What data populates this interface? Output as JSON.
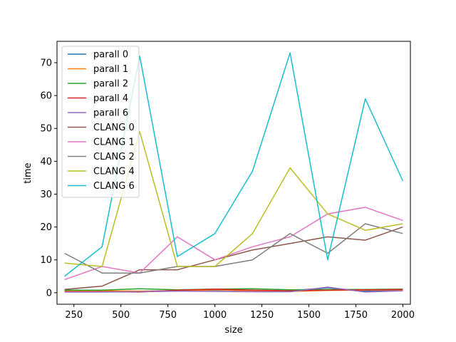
{
  "chart_data": {
    "type": "line",
    "title": "",
    "xlabel": "size",
    "ylabel": "time",
    "xlim": [
      160,
      2040
    ],
    "ylim": [
      -3.5,
      76.5
    ],
    "x": [
      200,
      400,
      600,
      800,
      1000,
      1200,
      1400,
      1600,
      1800,
      2000
    ],
    "xticks": [
      250,
      500,
      750,
      1000,
      1250,
      1500,
      1750,
      2000
    ],
    "xtick_labels": [
      "250",
      "500",
      "750",
      "1000",
      "1250",
      "1500",
      "1750",
      "2000"
    ],
    "yticks": [
      0,
      10,
      20,
      30,
      40,
      50,
      60,
      70
    ],
    "ytick_labels": [
      "0",
      "10",
      "20",
      "30",
      "40",
      "50",
      "60",
      "70"
    ],
    "grid": false,
    "legend_position": "top-left",
    "series": [
      {
        "name": "parall 0",
        "color": "#1f77b4",
        "values": [
          0.5,
          0.5,
          0.5,
          0.6,
          0.8,
          0.7,
          0.6,
          1.5,
          0.5,
          0.9
        ]
      },
      {
        "name": "parall 1",
        "color": "#ff7f0e",
        "values": [
          0.5,
          0.6,
          0.5,
          0.5,
          0.9,
          0.6,
          0.4,
          0.7,
          0.8,
          0.9
        ]
      },
      {
        "name": "parall 2",
        "color": "#2ca02c",
        "values": [
          0.8,
          0.8,
          1.2,
          0.9,
          1.1,
          1.2,
          0.9,
          1.0,
          1.0,
          1.1
        ]
      },
      {
        "name": "parall 4",
        "color": "#d62728",
        "values": [
          0.3,
          0.3,
          0.2,
          0.8,
          1.1,
          0.8,
          0.6,
          0.8,
          0.9,
          1.0
        ]
      },
      {
        "name": "parall 6",
        "color": "#9467bd",
        "values": [
          0.2,
          0.2,
          0.3,
          0.5,
          0.4,
          0.3,
          0.3,
          1.7,
          0.2,
          0.6
        ]
      },
      {
        "name": "CLANG 0",
        "color": "#8c564b",
        "values": [
          1,
          2,
          7,
          7,
          10,
          13,
          15,
          17,
          16,
          20
        ]
      },
      {
        "name": "CLANG 1",
        "color": "#e377c2",
        "values": [
          4,
          8,
          6,
          17,
          10,
          14,
          17,
          24,
          26,
          22
        ]
      },
      {
        "name": "CLANG 2",
        "color": "#7f7f7f",
        "values": [
          12,
          6,
          6,
          8,
          8,
          10,
          18,
          12,
          21,
          18
        ]
      },
      {
        "name": "CLANG 4",
        "color": "#bcbd22",
        "values": [
          9,
          8,
          49,
          8,
          8,
          18,
          38,
          24,
          19,
          21
        ]
      },
      {
        "name": "CLANG 6",
        "color": "#17becf",
        "values": [
          5,
          14,
          72,
          11,
          18,
          37,
          73,
          10,
          59,
          34
        ]
      }
    ]
  }
}
